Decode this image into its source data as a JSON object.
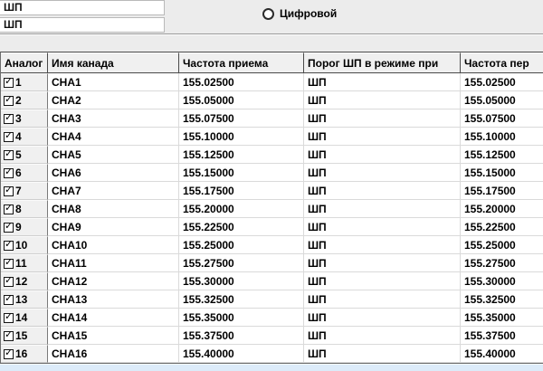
{
  "top": {
    "field1_value": "ШП",
    "field2_value": "ШП",
    "radio_label": "Цифровой",
    "radio_selected": false
  },
  "table": {
    "headers": [
      "Аналог",
      "Имя канада",
      "Частота приема",
      "Порог ШП в режиме при",
      "Частота пер"
    ],
    "rows": [
      {
        "num": "1",
        "checked": true,
        "name": "CHA1",
        "rx": "155.02500",
        "threshold": "ШП",
        "tx": "155.02500"
      },
      {
        "num": "2",
        "checked": true,
        "name": "CHA2",
        "rx": "155.05000",
        "threshold": "ШП",
        "tx": "155.05000"
      },
      {
        "num": "3",
        "checked": true,
        "name": "CHA3",
        "rx": "155.07500",
        "threshold": "ШП",
        "tx": "155.07500"
      },
      {
        "num": "4",
        "checked": true,
        "name": "CHA4",
        "rx": "155.10000",
        "threshold": "ШП",
        "tx": "155.10000"
      },
      {
        "num": "5",
        "checked": true,
        "name": "CHA5",
        "rx": "155.12500",
        "threshold": "ШП",
        "tx": "155.12500"
      },
      {
        "num": "6",
        "checked": true,
        "name": "CHA6",
        "rx": "155.15000",
        "threshold": "ШП",
        "tx": "155.15000"
      },
      {
        "num": "7",
        "checked": true,
        "name": "CHA7",
        "rx": "155.17500",
        "threshold": "ШП",
        "tx": "155.17500"
      },
      {
        "num": "8",
        "checked": true,
        "name": "CHA8",
        "rx": "155.20000",
        "threshold": "ШП",
        "tx": "155.20000"
      },
      {
        "num": "9",
        "checked": true,
        "name": "CHA9",
        "rx": "155.22500",
        "threshold": "ШП",
        "tx": "155.22500"
      },
      {
        "num": "10",
        "checked": true,
        "name": "CHA10",
        "rx": "155.25000",
        "threshold": "ШП",
        "tx": "155.25000"
      },
      {
        "num": "11",
        "checked": true,
        "name": "CHA11",
        "rx": "155.27500",
        "threshold": "ШП",
        "tx": "155.27500"
      },
      {
        "num": "12",
        "checked": true,
        "name": "CHA12",
        "rx": "155.30000",
        "threshold": "ШП",
        "tx": "155.30000"
      },
      {
        "num": "13",
        "checked": true,
        "name": "CHA13",
        "rx": "155.32500",
        "threshold": "ШП",
        "tx": "155.32500"
      },
      {
        "num": "14",
        "checked": true,
        "name": "CHA14",
        "rx": "155.35000",
        "threshold": "ШП",
        "tx": "155.35000"
      },
      {
        "num": "15",
        "checked": true,
        "name": "CHA15",
        "rx": "155.37500",
        "threshold": "ШП",
        "tx": "155.37500"
      },
      {
        "num": "16",
        "checked": true,
        "name": "CHA16",
        "rx": "155.40000",
        "threshold": "ШП",
        "tx": "155.40000"
      }
    ]
  },
  "colors": {
    "selection_strip": "#dcebf9",
    "grid_header_bg": "#f0f0f0",
    "cell_bg": "#ffffff"
  }
}
